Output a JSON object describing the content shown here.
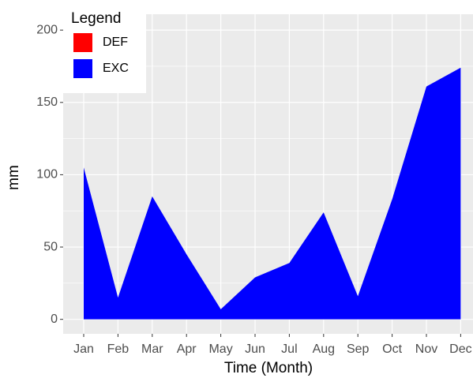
{
  "chart_data": {
    "type": "area",
    "x_label": "Time (Month)",
    "y_label": "mm",
    "legend_title": "Legend",
    "legend": "top-left",
    "categories": [
      "Jan",
      "Feb",
      "Mar",
      "Apr",
      "May",
      "Jun",
      "Jul",
      "Aug",
      "Sep",
      "Oct",
      "Nov",
      "Dec"
    ],
    "series": [
      {
        "name": "DEF",
        "color": "#ff0000",
        "values": [
          0,
          0,
          0,
          0,
          0,
          0,
          0,
          0,
          0,
          0,
          0,
          0
        ]
      },
      {
        "name": "EXC",
        "color": "#0000ff",
        "values": [
          105,
          15,
          85,
          45,
          7,
          29,
          39,
          74,
          16,
          83,
          161,
          174
        ]
      }
    ],
    "ylim": [
      -10,
      211
    ],
    "yticks": [
      0,
      50,
      100,
      150,
      200
    ],
    "grid": true
  }
}
